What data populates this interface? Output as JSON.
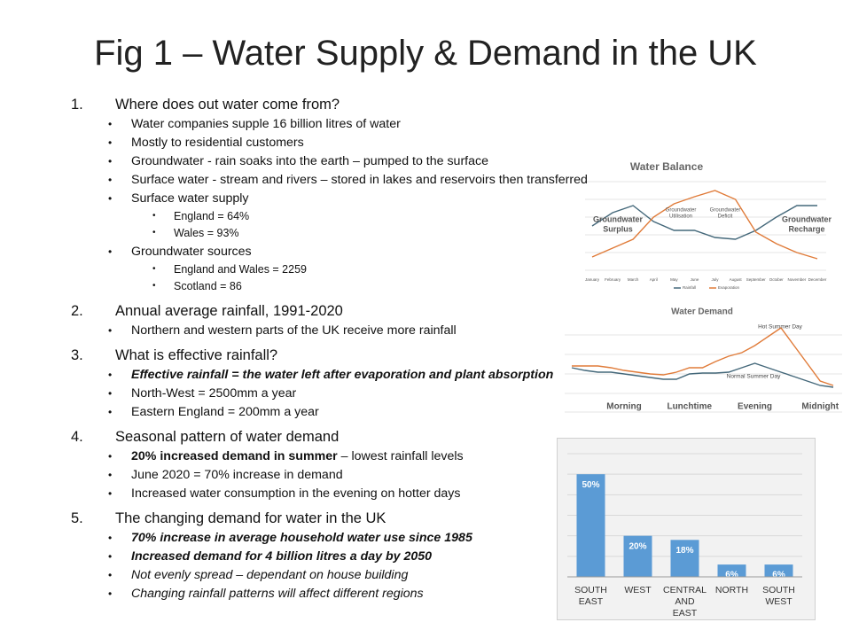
{
  "slide": {
    "title": "Fig 1 – Water Supply & Demand in the UK",
    "sections": [
      {
        "number": "1.",
        "heading": "Where does out water come from?",
        "items": [
          {
            "text": "Water companies supple 16 billion litres of water"
          },
          {
            "text": "Mostly to residential customers"
          },
          {
            "text": "Groundwater - rain soaks into the earth – pumped to the surface"
          },
          {
            "text": "Surface water - stream and rivers – stored in lakes and reservoirs then transferred"
          },
          {
            "text": "Surface water supply",
            "sub": [
              "England = 64%",
              "Wales = 93%"
            ]
          },
          {
            "text": "Groundwater sources",
            "sub": [
              "England and Wales = 2259",
              "Scotland = 86"
            ]
          }
        ]
      },
      {
        "number": "2.",
        "heading": "Annual average rainfall, 1991-2020",
        "items": [
          {
            "text": "Northern and western parts of the UK receive more rainfall"
          }
        ]
      },
      {
        "number": "3.",
        "heading": "What is effective rainfall?",
        "items": [
          {
            "text": "Effective rainfall = the water left after evaporation and plant absorption",
            "style": "bold-italic"
          },
          {
            "text": "North-West = 2500mm a year"
          },
          {
            "text": "Eastern England = 200mm a year"
          }
        ]
      },
      {
        "number": "4.",
        "heading": "Seasonal pattern of water demand",
        "items": [
          {
            "lead": "20% increased demand in summer",
            "text": "– lowest rainfall levels"
          },
          {
            "text": "June 2020 = 70% increase in demand"
          },
          {
            "text": "Increased water consumption in the evening on hotter days"
          }
        ]
      },
      {
        "number": "5.",
        "heading": "The changing demand for water in the UK",
        "items": [
          {
            "text": "70% increase in average household water use since 1985",
            "style": "bold-italic"
          },
          {
            "text": "Increased demand for 4 billion litres a day by 2050",
            "style": "bold-italic"
          },
          {
            "text": "Not evenly spread – dependant on house building",
            "style": "italic"
          },
          {
            "text": "Changing rainfall patterns will affect different regions",
            "style": "italic"
          }
        ]
      }
    ]
  },
  "chart_data": [
    {
      "type": "line",
      "title": "Water Balance",
      "categories": [
        "January",
        "February",
        "March",
        "April",
        "May",
        "June",
        "July",
        "August",
        "September",
        "October",
        "November",
        "December"
      ],
      "series": [
        {
          "name": "Rainfall",
          "color": "#44687a",
          "values": [
            60,
            75,
            83,
            65,
            55,
            55,
            47,
            45,
            55,
            70,
            83,
            83
          ]
        },
        {
          "name": "Evaporation",
          "color": "#e07b39",
          "values": [
            25,
            35,
            45,
            70,
            85,
            93,
            100,
            90,
            53,
            40,
            30,
            23
          ]
        }
      ],
      "annotations": [
        "Groundwater Surplus",
        "Groundwater Utilisation",
        "Groundwater Deficit",
        "Groundwater Recharge"
      ],
      "legend": "bottom"
    },
    {
      "type": "line",
      "title": "Water Demand",
      "categories": [
        null,
        null,
        null,
        null,
        "Morning",
        null,
        null,
        null,
        null,
        "Lunchtime",
        null,
        null,
        null,
        null,
        "Evening",
        null,
        null,
        null,
        null,
        "Midnight",
        null
      ],
      "series": [
        {
          "name": "Hot Summer Day",
          "color": "#e07b39",
          "values": [
            52,
            52,
            52,
            50,
            47,
            45,
            43,
            42,
            45,
            50,
            50,
            57,
            63,
            67,
            75,
            85,
            95,
            75,
            55,
            35,
            30
          ]
        },
        {
          "name": "Normal Summer Day",
          "color": "#44687a",
          "values": [
            50,
            47,
            45,
            45,
            43,
            41,
            39,
            37,
            37,
            43,
            44,
            44,
            45,
            50,
            55,
            50,
            45,
            40,
            35,
            30,
            28
          ]
        }
      ]
    },
    {
      "type": "bar",
      "categories": [
        "SOUTH EAST",
        "WEST",
        "CENTRAL AND EAST",
        "NORTH",
        "SOUTH WEST"
      ],
      "values": [
        50,
        20,
        18,
        6,
        6
      ],
      "value_labels": [
        "50%",
        "20%",
        "18%",
        "6%",
        "6%"
      ],
      "color": "#5b9bd5",
      "ylim": [
        0,
        60
      ],
      "grid": true
    }
  ]
}
